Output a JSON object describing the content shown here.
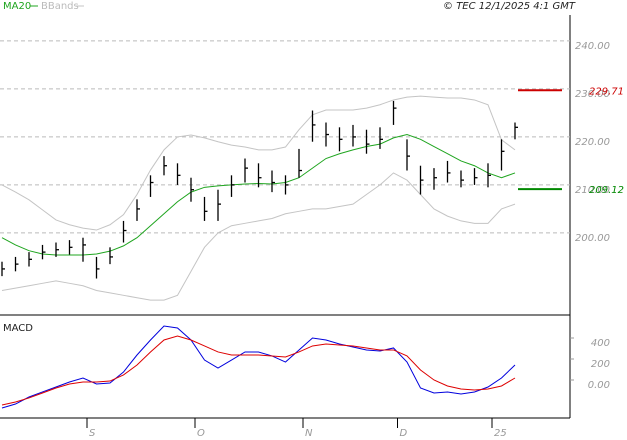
{
  "header": {
    "copyright": "© TEC 12/1/2025 4:1 GMT"
  },
  "chart_data": [
    {
      "type": "ohlc",
      "ylim": [
        182.9,
        245.4
      ],
      "yticks": [
        {
          "value": 240,
          "label": "240.00"
        },
        {
          "value": 230,
          "label": "230.00"
        },
        {
          "value": 220,
          "label": "220.00"
        },
        {
          "value": 210,
          "label": "210.00"
        },
        {
          "value": 200,
          "label": "200.00"
        }
      ],
      "grid": true,
      "high": [
        194,
        195,
        196,
        197.5,
        198,
        198.5,
        199,
        195,
        197,
        202.5,
        207,
        212,
        216,
        214.5,
        211.5,
        207.5,
        209,
        212,
        215.5,
        214.5,
        213,
        212,
        217.5,
        225.5,
        223,
        222,
        222.5,
        221.5,
        222,
        227.5,
        219.5,
        214,
        213.5,
        215,
        213,
        213.5,
        214.5,
        219.5,
        223
      ],
      "low": [
        191,
        192,
        193,
        194.5,
        195,
        195.5,
        194,
        190.5,
        193.5,
        198,
        202.5,
        207.5,
        212,
        210,
        206.5,
        202.5,
        202.5,
        207.5,
        210.5,
        209.5,
        208.5,
        208,
        211.5,
        219,
        218,
        217,
        218,
        216.5,
        217.5,
        222.5,
        213,
        208,
        209,
        210.5,
        209.5,
        210,
        209.5,
        213,
        219.5
      ],
      "close": [
        192.5,
        193.5,
        194.5,
        196,
        196.5,
        197,
        197.5,
        192.5,
        195,
        200.5,
        205,
        210.5,
        214,
        212,
        209,
        204.5,
        206,
        210,
        213.5,
        211.5,
        210.5,
        210,
        213,
        222.5,
        220.5,
        219.5,
        220,
        218.5,
        219.5,
        226,
        216,
        211,
        211.5,
        212.5,
        211,
        211.5,
        212,
        217,
        222
      ],
      "bar_color": "#000000",
      "series": [
        {
          "name": "MA20",
          "color": "#1fa51f",
          "values": [
            199,
            197.5,
            196.3,
            195.6,
            195.4,
            195.4,
            195.4,
            195.6,
            196.2,
            197.3,
            199,
            201.5,
            204,
            206.5,
            208.5,
            209.5,
            209.8,
            210,
            210.2,
            210.3,
            210.2,
            210.5,
            211.5,
            213.5,
            215.5,
            216.5,
            217.3,
            218,
            218.5,
            219.8,
            220.5,
            219.5,
            218,
            216.5,
            215,
            214,
            212.5,
            211.5,
            212.5
          ]
        },
        {
          "name": "BBands",
          "color": "#c4c4c4",
          "upper": [
            210,
            208.5,
            206.9,
            204.8,
            202.7,
            201.7,
            201,
            200.6,
            201.7,
            203.8,
            208,
            213.1,
            217.3,
            220,
            220.4,
            219.8,
            219,
            218.3,
            217.9,
            217.3,
            217.3,
            217.9,
            221.5,
            224.6,
            225.6,
            225.6,
            225.6,
            226,
            226.7,
            227.7,
            228.3,
            228.5,
            228.3,
            228.1,
            228.1,
            227.7,
            226.7,
            219.4,
            217.3
          ],
          "lower": [
            188,
            188.5,
            189,
            189.5,
            190,
            189.5,
            189,
            188,
            187.5,
            187,
            186.5,
            186,
            186,
            187,
            192,
            197,
            200,
            201.5,
            202,
            202.5,
            203,
            204,
            204.5,
            205,
            205,
            205.5,
            206,
            208,
            210,
            212.5,
            211,
            208,
            205,
            203.5,
            202.5,
            202,
            202,
            205,
            206
          ]
        }
      ],
      "levels": [
        {
          "value": 229.71,
          "color": "#cc0000"
        },
        {
          "value": 209.12,
          "color": "#008800"
        }
      ]
    },
    {
      "type": "line",
      "title": "MACD",
      "categories": [
        null,
        null,
        null,
        null,
        null,
        null,
        "S",
        null,
        null,
        null,
        null,
        null,
        null,
        null,
        "O",
        null,
        null,
        null,
        null,
        null,
        null,
        null,
        "N",
        null,
        null,
        null,
        null,
        null,
        null,
        "D",
        null,
        null,
        null,
        null,
        null,
        null,
        "25",
        null,
        null
      ],
      "ylim": [
        -362,
        619
      ],
      "yticks": [
        400,
        200,
        {
          "value": 0,
          "label": "0.00"
        }
      ],
      "series": [
        {
          "color": "#0000dd",
          "values": [
            -267,
            -229,
            -162,
            -114,
            -67,
            -19,
            19,
            -38,
            -29,
            76,
            238,
            381,
            514,
            495,
            381,
            190,
            114,
            190,
            267,
            267,
            229,
            171,
            286,
            400,
            381,
            343,
            314,
            286,
            276,
            305,
            171,
            -76,
            -124,
            -114,
            -133,
            -114,
            -67,
            19,
            143
          ]
        },
        {
          "color": "#dd0000",
          "values": [
            -238,
            -210,
            -171,
            -124,
            -76,
            -38,
            -19,
            -19,
            -10,
            48,
            143,
            267,
            381,
            419,
            381,
            324,
            267,
            238,
            238,
            238,
            229,
            219,
            267,
            324,
            343,
            333,
            324,
            305,
            286,
            286,
            229,
            95,
            0,
            -57,
            -86,
            -95,
            -86,
            -57,
            19
          ]
        }
      ]
    }
  ]
}
